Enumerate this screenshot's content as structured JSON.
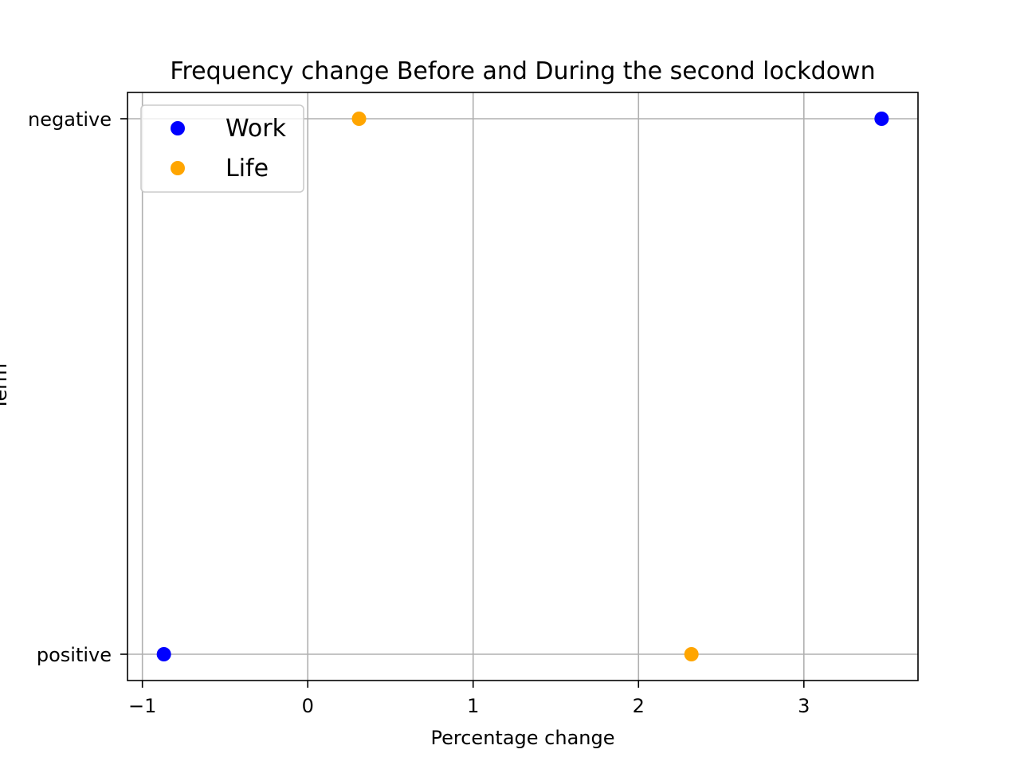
{
  "chart_data": {
    "type": "scatter",
    "title": "Frequency change Before and During the second lockdown",
    "xlabel": "Percentage change",
    "ylabel": "Term",
    "xlim": [
      -1.09,
      3.69
    ],
    "x_ticks": [
      -1,
      0,
      1,
      2,
      3
    ],
    "x_tick_labels": [
      "−1",
      "0",
      "1",
      "2",
      "3"
    ],
    "categories": [
      "positive",
      "negative"
    ],
    "grid": true,
    "legend_placement": "upper-left",
    "series": [
      {
        "name": "Work",
        "color": "#0000ff",
        "points": [
          {
            "x": -0.87,
            "y": "positive"
          },
          {
            "x": 3.47,
            "y": "negative"
          }
        ]
      },
      {
        "name": "Life",
        "color": "#ffa500",
        "points": [
          {
            "x": 0.31,
            "y": "negative"
          },
          {
            "x": 2.32,
            "y": "positive"
          }
        ]
      }
    ]
  }
}
